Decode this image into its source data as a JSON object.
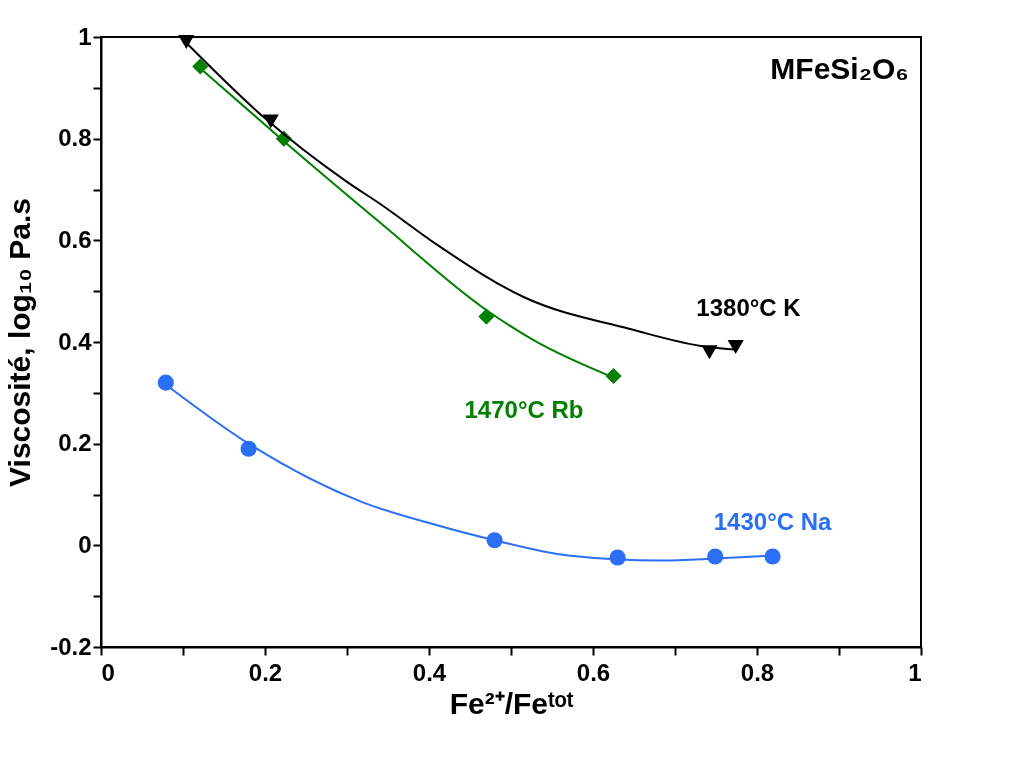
{
  "chart_data": {
    "type": "scatter",
    "xlabel": "Fe²⁺/Feᵗᵒᵗ",
    "ylabel": "Viscosité, log₁₀ Pa.s",
    "annotations": [
      "MFeSi₂O₆"
    ],
    "xlim": [
      0,
      1
    ],
    "ylim": [
      -0.2,
      1
    ],
    "xticks": [
      0,
      {
        "value": 0.1,
        "label": null
      },
      0.2,
      {
        "value": 0.3,
        "label": null
      },
      0.4,
      {
        "value": 0.5,
        "label": null
      },
      0.6,
      {
        "value": 0.7,
        "label": null
      },
      0.8,
      {
        "value": 0.9,
        "label": null
      },
      1
    ],
    "yticks": [
      -0.2,
      {
        "value": -0.1,
        "label": null
      },
      0,
      {
        "value": 0.1,
        "label": null
      },
      0.2,
      {
        "value": 0.3,
        "label": null
      },
      0.4,
      {
        "value": 0.5,
        "label": null
      },
      0.6,
      {
        "value": 0.7,
        "label": null
      },
      0.8,
      {
        "value": 0.9,
        "label": null
      },
      1
    ],
    "grid": false,
    "legend": false,
    "series": [
      {
        "name": "1380°C K",
        "marker": "triangle",
        "color": "#000000",
        "x": [
          0.104,
          0.207,
          0.742,
          0.774
        ],
        "values": [
          0.99,
          0.834,
          0.38,
          0.39
        ]
      },
      {
        "name": "1470°C Rb",
        "marker": "diamond",
        "color": "#007f00",
        "x": [
          0.121,
          0.223,
          0.47,
          0.625
        ],
        "values": [
          0.942,
          0.8,
          0.45,
          0.333
        ]
      },
      {
        "name": "1430°C Na",
        "marker": "circle",
        "color": "#2a6ff5",
        "x": [
          0.079,
          0.18,
          0.48,
          0.63,
          0.749,
          0.819
        ],
        "values": [
          0.32,
          0.19,
          0.01,
          -0.024,
          -0.022,
          -0.022
        ]
      },
      {
        "type": "line",
        "marker": "none",
        "color": "#000000",
        "x": [
          0.1,
          0.2,
          0.3,
          0.341,
          0.411,
          0.516,
          0.644,
          0.74,
          0.775
        ],
        "values": [
          0.995,
          0.84,
          0.715,
          0.671,
          0.59,
          0.488,
          0.426,
          0.39,
          0.385
        ]
      },
      {
        "type": "line",
        "marker": "none",
        "color": "#007f00",
        "x": [
          0.12,
          0.223,
          0.341,
          0.469,
          0.527,
          0.625
        ],
        "values": [
          0.94,
          0.795,
          0.634,
          0.464,
          0.404,
          0.33
        ]
      },
      {
        "type": "line",
        "marker": "none",
        "color": "#2a6ff5",
        "x": [
          0.08,
          0.18,
          0.317,
          0.411,
          0.48,
          0.57,
          0.683,
          0.75,
          0.82
        ],
        "values": [
          0.315,
          0.2,
          0.086,
          0.039,
          0.01,
          -0.02,
          -0.03,
          -0.026,
          -0.02
        ]
      }
    ]
  }
}
